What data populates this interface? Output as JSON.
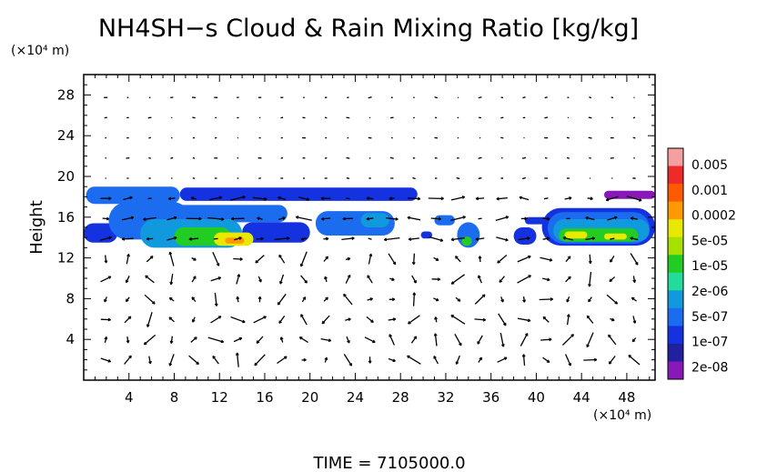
{
  "chart_data": {
    "type": "heatmap",
    "title": "NH4SH−s Cloud & Rain Mixing Ratio [kg/kg]",
    "ylabel": "Height",
    "y_unit": "(×10⁴ m)",
    "x_unit": "(×10⁴ m)",
    "xlim": [
      0,
      50.5
    ],
    "ylim": [
      0,
      30
    ],
    "x_ticks": [
      4,
      8,
      12,
      16,
      20,
      24,
      28,
      32,
      36,
      40,
      44,
      48
    ],
    "y_ticks": [
      4,
      8,
      12,
      16,
      20,
      24,
      28
    ],
    "time_label": "TIME = 7105000.0",
    "colorbar": {
      "labels": [
        "0.005",
        "0.001",
        "0.0002",
        "5e-05",
        "1e-05",
        "2e-06",
        "5e-07",
        "1e-07",
        "2e-08"
      ],
      "colors": [
        "#f4a0a0",
        "#ee2a2a",
        "#ff5a00",
        "#ff9900",
        "#e8e800",
        "#a8e000",
        "#22cc22",
        "#22dd99",
        "#1199dd",
        "#1c6cf0",
        "#1432e0",
        "#2020a0",
        "#8818b8"
      ]
    },
    "cloud_blobs": [
      {
        "x0": 0.2,
        "x1": 8.5,
        "y0": 17.3,
        "y1": 19.0,
        "level": 9
      },
      {
        "x0": 2.2,
        "x1": 9.5,
        "y0": 13.8,
        "y1": 17.5,
        "level": 9
      },
      {
        "x0": 0.0,
        "x1": 3.0,
        "y0": 13.5,
        "y1": 15.4,
        "level": 10
      },
      {
        "x0": 5.0,
        "x1": 14.0,
        "y0": 13.0,
        "y1": 15.8,
        "level": 8
      },
      {
        "x0": 8.0,
        "x1": 13.0,
        "y0": 13.2,
        "y1": 15.0,
        "level": 6
      },
      {
        "x0": 11.5,
        "x1": 15.0,
        "y0": 13.2,
        "y1": 14.5,
        "level": 4
      },
      {
        "x0": 12.5,
        "x1": 14.2,
        "y0": 13.4,
        "y1": 14.0,
        "level": 3
      },
      {
        "x0": 14.0,
        "x1": 20.0,
        "y0": 13.5,
        "y1": 15.5,
        "level": 10
      },
      {
        "x0": 8.5,
        "x1": 29.5,
        "y0": 17.6,
        "y1": 18.9,
        "level": 10
      },
      {
        "x0": 8.0,
        "x1": 18.0,
        "y0": 15.5,
        "y1": 17.2,
        "level": 9
      },
      {
        "x0": 20.5,
        "x1": 27.5,
        "y0": 14.2,
        "y1": 16.6,
        "level": 9
      },
      {
        "x0": 24.5,
        "x1": 27.0,
        "y0": 15.0,
        "y1": 16.4,
        "level": 8
      },
      {
        "x0": 29.8,
        "x1": 30.8,
        "y0": 13.9,
        "y1": 14.6,
        "level": 10
      },
      {
        "x0": 31.0,
        "x1": 32.8,
        "y0": 15.2,
        "y1": 16.2,
        "level": 9
      },
      {
        "x0": 33.0,
        "x1": 35.0,
        "y0": 13.0,
        "y1": 15.5,
        "level": 9
      },
      {
        "x0": 33.4,
        "x1": 34.3,
        "y0": 13.2,
        "y1": 14.1,
        "level": 6
      },
      {
        "x0": 38.0,
        "x1": 40.0,
        "y0": 13.3,
        "y1": 15.0,
        "level": 10
      },
      {
        "x0": 39.0,
        "x1": 41.0,
        "y0": 15.3,
        "y1": 16.0,
        "level": 10
      },
      {
        "x0": 40.5,
        "x1": 50.5,
        "y0": 13.2,
        "y1": 16.9,
        "level": 10
      },
      {
        "x0": 41.0,
        "x1": 50.0,
        "y0": 13.4,
        "y1": 16.5,
        "level": 9
      },
      {
        "x0": 41.5,
        "x1": 50.0,
        "y0": 13.6,
        "y1": 15.8,
        "level": 8
      },
      {
        "x0": 42.0,
        "x1": 49.0,
        "y0": 13.6,
        "y1": 14.9,
        "level": 6
      },
      {
        "x0": 42.5,
        "x1": 44.5,
        "y0": 13.9,
        "y1": 14.6,
        "level": 4
      },
      {
        "x0": 46.0,
        "x1": 48.0,
        "y0": 13.8,
        "y1": 14.4,
        "level": 4
      },
      {
        "x0": 46.0,
        "x1": 50.5,
        "y0": 17.8,
        "y1": 18.6,
        "level": 12
      }
    ]
  }
}
